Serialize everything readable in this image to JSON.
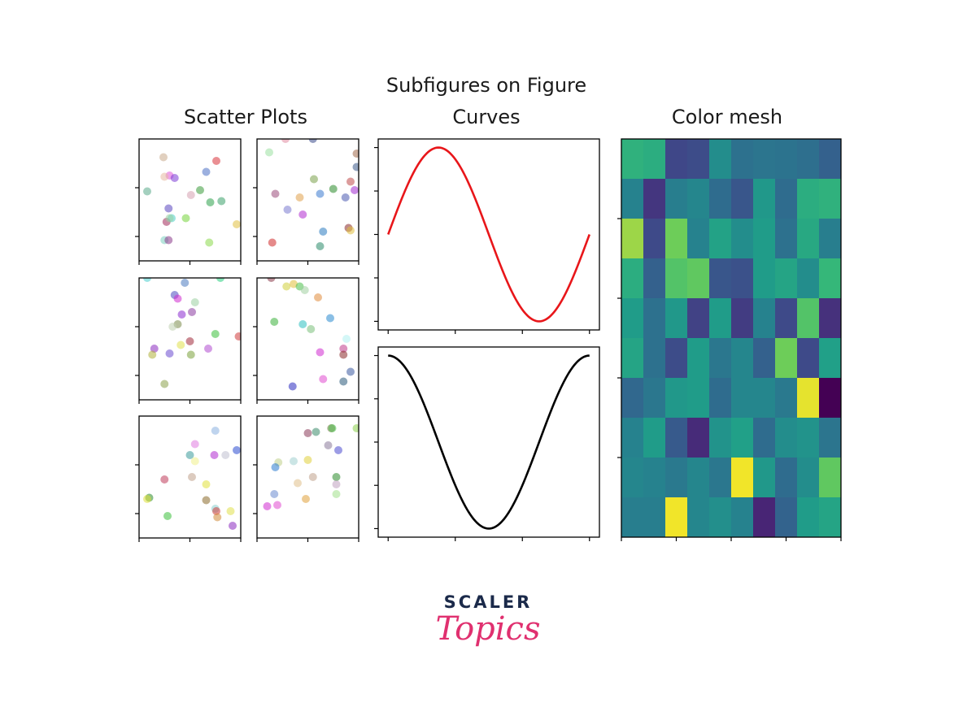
{
  "figure": {
    "suptitle": "Subfigures on Figure",
    "subtitles": {
      "scatter": "Scatter Plots",
      "curves": "Curves",
      "mesh": "Color mesh"
    }
  },
  "logo": {
    "top": "SCALER",
    "bottom": "Topics"
  },
  "chart_data": [
    {
      "type": "scatter",
      "title": "Scatter Plots",
      "grid": false,
      "panels": [
        {
          "points": [
            [
              0.24,
              0.85,
              "#c9a98a"
            ],
            [
              0.76,
              0.82,
              "#d9333a"
            ],
            [
              0.3,
              0.7,
              "#e05ad8"
            ],
            [
              0.35,
              0.68,
              "#7b3bd6"
            ],
            [
              0.66,
              0.73,
              "#4a6fc4"
            ],
            [
              0.25,
              0.69,
              "#e6b8a0"
            ],
            [
              0.6,
              0.58,
              "#3a9a3a"
            ],
            [
              0.08,
              0.57,
              "#5aaa8a"
            ],
            [
              0.51,
              0.54,
              "#d6a0b0"
            ],
            [
              0.7,
              0.48,
              "#2ca04a"
            ],
            [
              0.81,
              0.49,
              "#3aa06a"
            ],
            [
              0.29,
              0.43,
              "#5a46c0"
            ],
            [
              0.27,
              0.32,
              "#a02a5a"
            ],
            [
              0.32,
              0.35,
              "#4ad0c6"
            ],
            [
              0.46,
              0.35,
              "#74d43a"
            ],
            [
              0.96,
              0.3,
              "#e0c040"
            ],
            [
              0.25,
              0.17,
              "#7bd0c0"
            ],
            [
              0.29,
              0.17,
              "#8a3a8a"
            ],
            [
              0.69,
              0.15,
              "#8ad84a"
            ],
            [
              0.3,
              0.35,
              "#9ad0a0"
            ]
          ]
        },
        {
          "points": [
            [
              0.28,
              1.0,
              "#e08aa0"
            ],
            [
              0.55,
              1.0,
              "#3a4a8a"
            ],
            [
              0.98,
              0.88,
              "#a06a4a"
            ],
            [
              0.12,
              0.89,
              "#9ae0a0"
            ],
            [
              0.98,
              0.77,
              "#3a5a8a"
            ],
            [
              0.56,
              0.67,
              "#7aa04a"
            ],
            [
              0.92,
              0.65,
              "#c04a4a"
            ],
            [
              0.18,
              0.55,
              "#9a4a7a"
            ],
            [
              0.75,
              0.59,
              "#2a8a2a"
            ],
            [
              0.96,
              0.58,
              "#a02ad0"
            ],
            [
              0.42,
              0.52,
              "#e0a04a"
            ],
            [
              0.62,
              0.55,
              "#3a7ad0"
            ],
            [
              0.87,
              0.52,
              "#4a5ab0"
            ],
            [
              0.3,
              0.42,
              "#7a7ad0"
            ],
            [
              0.45,
              0.38,
              "#b02ad0"
            ],
            [
              0.9,
              0.27,
              "#8a2a2a"
            ],
            [
              0.92,
              0.25,
              "#e0c040"
            ],
            [
              0.65,
              0.24,
              "#2a7ac0"
            ],
            [
              0.62,
              0.12,
              "#2a8a6a"
            ],
            [
              0.15,
              0.15,
              "#d02a2a"
            ]
          ]
        },
        {
          "points": [
            [
              0.08,
              1.0,
              "#4ad0d0"
            ],
            [
              0.8,
              1.0,
              "#2ad080"
            ],
            [
              0.45,
              0.96,
              "#4a7ac0"
            ],
            [
              0.35,
              0.86,
              "#4a4ac0"
            ],
            [
              0.38,
              0.83,
              "#d02ad0"
            ],
            [
              0.55,
              0.8,
              "#9ad0a0"
            ],
            [
              0.42,
              0.7,
              "#8a2ad0"
            ],
            [
              0.52,
              0.72,
              "#8a3aa0"
            ],
            [
              0.38,
              0.62,
              "#7a8a4a"
            ],
            [
              0.33,
              0.6,
              "#c0d0b0"
            ],
            [
              0.75,
              0.54,
              "#3ac03a"
            ],
            [
              0.98,
              0.52,
              "#d03a3a"
            ],
            [
              0.5,
              0.48,
              "#a02a3a"
            ],
            [
              0.68,
              0.42,
              "#b04ad0"
            ],
            [
              0.41,
              0.45,
              "#e0e04a"
            ],
            [
              0.15,
              0.42,
              "#8a2ac0"
            ],
            [
              0.3,
              0.38,
              "#6a4ad0"
            ],
            [
              0.13,
              0.37,
              "#b0b03a"
            ],
            [
              0.51,
              0.37,
              "#7aa03a"
            ],
            [
              0.25,
              0.13,
              "#8aa04a"
            ]
          ]
        },
        {
          "points": [
            [
              0.14,
              1.0,
              "#8a3a4a"
            ],
            [
              0.29,
              0.93,
              "#d0d03a"
            ],
            [
              0.36,
              0.95,
              "#e0c03a"
            ],
            [
              0.42,
              0.93,
              "#4ac04a"
            ],
            [
              0.47,
              0.9,
              "#a0d0a0"
            ],
            [
              0.6,
              0.84,
              "#e08a3a"
            ],
            [
              0.17,
              0.64,
              "#3ab03a"
            ],
            [
              0.45,
              0.62,
              "#2ac0c0"
            ],
            [
              0.53,
              0.58,
              "#7ac07a"
            ],
            [
              0.72,
              0.67,
              "#2a8ad0"
            ],
            [
              0.88,
              0.5,
              "#b0f0f0"
            ],
            [
              0.62,
              0.39,
              "#d02ad0"
            ],
            [
              0.85,
              0.42,
              "#c03a8a"
            ],
            [
              0.85,
              0.37,
              "#8a2a2a"
            ],
            [
              0.92,
              0.23,
              "#3a5aa0"
            ],
            [
              0.85,
              0.15,
              "#2a5a7a"
            ],
            [
              0.65,
              0.17,
              "#e04ad0"
            ],
            [
              0.35,
              0.11,
              "#2a2ac0"
            ]
          ]
        },
        {
          "points": [
            [
              0.75,
              0.88,
              "#8ab0e0"
            ],
            [
              0.55,
              0.77,
              "#e07ae0"
            ],
            [
              0.5,
              0.68,
              "#3a9a9a"
            ],
            [
              0.55,
              0.63,
              "#f0f08a"
            ],
            [
              0.74,
              0.68,
              "#b02ad0"
            ],
            [
              0.85,
              0.68,
              "#c0c0d0"
            ],
            [
              0.96,
              0.72,
              "#2a4ad0"
            ],
            [
              0.25,
              0.48,
              "#c03a5a"
            ],
            [
              0.52,
              0.5,
              "#c0a08a"
            ],
            [
              0.66,
              0.44,
              "#e0e03a"
            ],
            [
              0.1,
              0.33,
              "#2a8a2a"
            ],
            [
              0.08,
              0.32,
              "#e0e03a"
            ],
            [
              0.66,
              0.31,
              "#8a6a2a"
            ],
            [
              0.75,
              0.24,
              "#8ad0d0"
            ],
            [
              0.76,
              0.22,
              "#d03a3a"
            ],
            [
              0.77,
              0.17,
              "#d08a3a"
            ],
            [
              0.9,
              0.22,
              "#e0e04a"
            ],
            [
              0.28,
              0.18,
              "#3ac03a"
            ],
            [
              0.92,
              0.1,
              "#8a2ac0"
            ]
          ]
        },
        {
          "points": [
            [
              0.5,
              0.86,
              "#8a3a5a"
            ],
            [
              0.58,
              0.87,
              "#3a8a6a"
            ],
            [
              0.73,
              0.9,
              "#7a7a4a"
            ],
            [
              0.74,
              0.9,
              "#4ac04a"
            ],
            [
              0.98,
              0.9,
              "#8ad04a"
            ],
            [
              0.7,
              0.76,
              "#8a7a9a"
            ],
            [
              0.8,
              0.72,
              "#4a4ad0"
            ],
            [
              0.5,
              0.64,
              "#e0d03a"
            ],
            [
              0.36,
              0.63,
              "#a0d0d0"
            ],
            [
              0.21,
              0.62,
              "#c0d08a"
            ],
            [
              0.18,
              0.58,
              "#2a7ad0"
            ],
            [
              0.55,
              0.5,
              "#c0a08a"
            ],
            [
              0.4,
              0.45,
              "#e0c08a"
            ],
            [
              0.78,
              0.5,
              "#2a8a2a"
            ],
            [
              0.78,
              0.44,
              "#c0a0c0"
            ],
            [
              0.78,
              0.36,
              "#a0e08a"
            ],
            [
              0.17,
              0.36,
              "#6a8ad0"
            ],
            [
              0.48,
              0.32,
              "#e0a03a"
            ],
            [
              0.2,
              0.27,
              "#e04ad0"
            ],
            [
              0.1,
              0.26,
              "#d02ad0"
            ]
          ]
        }
      ]
    },
    {
      "type": "line",
      "title": "Curves",
      "grid": false,
      "series": [
        {
          "color": "#e8161a",
          "x": [
            0,
            0.1,
            0.2,
            0.3,
            0.4,
            0.5,
            0.6,
            0.7,
            0.8,
            0.9,
            1.0
          ],
          "values": [
            0,
            0.588,
            0.951,
            0.951,
            0.588,
            0,
            -0.588,
            -0.951,
            -0.951,
            -0.588,
            0
          ]
        },
        {
          "color": "#000000",
          "x": [
            0,
            0.1,
            0.2,
            0.3,
            0.4,
            0.5,
            0.6,
            0.7,
            0.8,
            0.9,
            1.0
          ],
          "values": [
            1,
            0.809,
            0.309,
            -0.309,
            -0.809,
            -1,
            -0.809,
            -0.309,
            0.309,
            0.809,
            1
          ]
        }
      ]
    },
    {
      "type": "heatmap",
      "title": "Color mesh",
      "colormap": "viridis",
      "rows": 10,
      "cols": 10,
      "values": [
        [
          0.72,
          0.7,
          0.24,
          0.26,
          0.55,
          0.42,
          0.44,
          0.43,
          0.41,
          0.35
        ],
        [
          0.5,
          0.18,
          0.48,
          0.52,
          0.4,
          0.3,
          0.6,
          0.4,
          0.7,
          0.72
        ],
        [
          0.92,
          0.25,
          0.88,
          0.5,
          0.65,
          0.55,
          0.62,
          0.42,
          0.68,
          0.48
        ],
        [
          0.7,
          0.35,
          0.82,
          0.85,
          0.3,
          0.28,
          0.62,
          0.66,
          0.55,
          0.75
        ],
        [
          0.62,
          0.42,
          0.6,
          0.22,
          0.62,
          0.2,
          0.5,
          0.25,
          0.82,
          0.16
        ],
        [
          0.66,
          0.42,
          0.26,
          0.62,
          0.45,
          0.52,
          0.35,
          0.88,
          0.25,
          0.64
        ],
        [
          0.38,
          0.45,
          0.6,
          0.62,
          0.4,
          0.52,
          0.52,
          0.46,
          0.98,
          0.0
        ],
        [
          0.5,
          0.62,
          0.32,
          0.14,
          0.58,
          0.64,
          0.4,
          0.55,
          0.58,
          0.44
        ],
        [
          0.52,
          0.5,
          0.46,
          0.52,
          0.45,
          0.99,
          0.6,
          0.4,
          0.55,
          0.85
        ],
        [
          0.48,
          0.48,
          0.99,
          0.52,
          0.56,
          0.5,
          0.12,
          0.36,
          0.62,
          0.66
        ]
      ]
    }
  ]
}
